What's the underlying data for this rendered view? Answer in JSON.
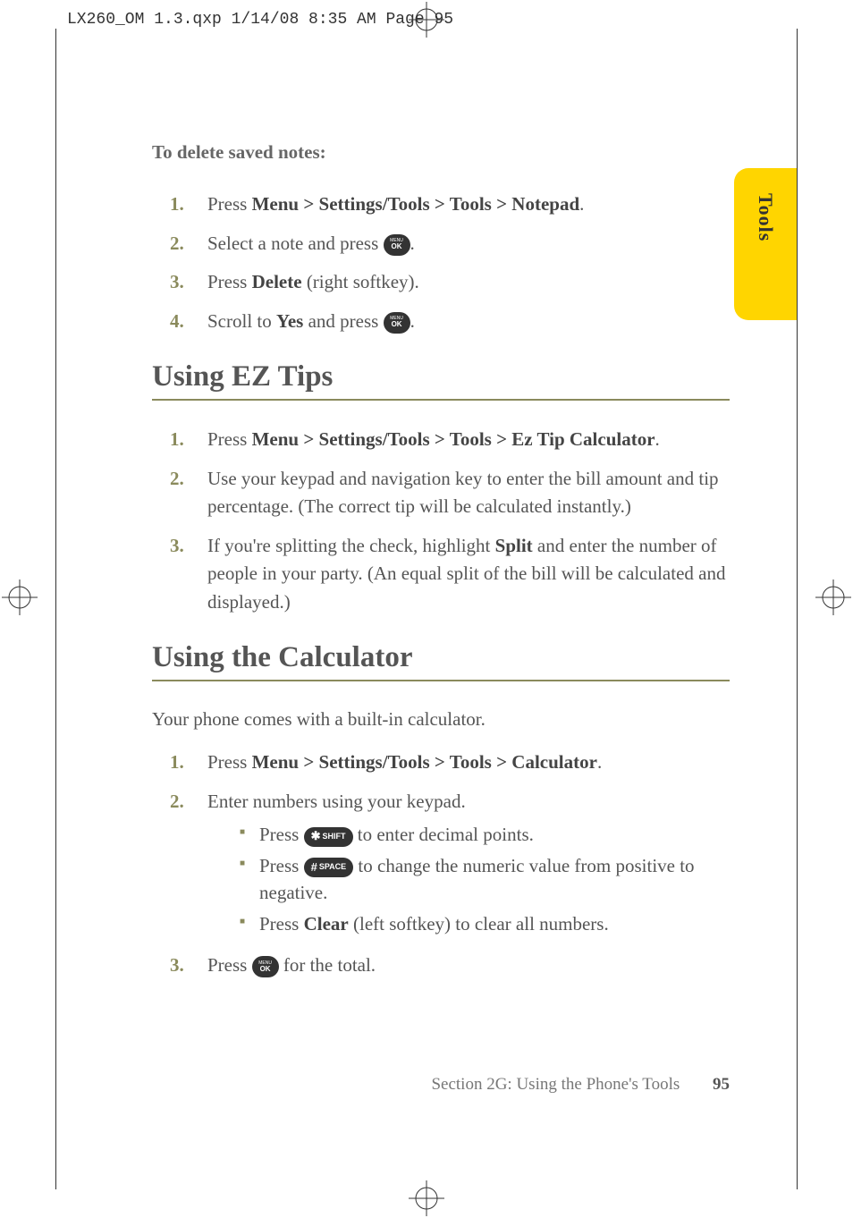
{
  "prepress_header": "LX260_OM 1.3.qxp  1/14/08  8:35 AM  Page 95",
  "sidebar_tab": "Tools",
  "colors": {
    "tab_bg": "#ffd500",
    "accent": "#8a8a5c",
    "body_text": "#555555",
    "num_color": "#8a8a5c"
  },
  "section_a": {
    "subtitle": "To delete saved notes:",
    "steps": [
      {
        "num": "1.",
        "html": "Press <b>Menu > Settings/Tools > Tools > Notepad</b>."
      },
      {
        "num": "2.",
        "pre": "Select a note and press ",
        "icon": "ok",
        "post": "."
      },
      {
        "num": "3.",
        "html": "Press <b>Delete</b> (right softkey)."
      },
      {
        "num": "4.",
        "pre": "Scroll to <b>Yes</b> and press ",
        "icon": "ok",
        "post": "."
      }
    ]
  },
  "section_b": {
    "heading": "Using EZ Tips",
    "steps": [
      {
        "num": "1.",
        "html": "Press <b>Menu > Settings/Tools > Tools > Ez Tip Calculator</b>."
      },
      {
        "num": "2.",
        "html": "Use your keypad and navigation key to enter the bill amount and tip percentage. (The correct tip will be calculated instantly.)"
      },
      {
        "num": "3.",
        "html": "If you're splitting the check, highlight <b>Split</b> and enter the number of people in your party. (An equal split of the bill will be calculated and displayed.)"
      }
    ]
  },
  "section_c": {
    "heading": "Using the Calculator",
    "body": "Your phone comes with a built-in calculator.",
    "steps": [
      {
        "num": "1.",
        "html": "Press <b>Menu > Settings/Tools > Tools > Calculator</b>."
      },
      {
        "num": "2.",
        "html": "Enter numbers using your keypad.",
        "subs": [
          {
            "pre": "Press ",
            "key_sym": "✱",
            "key_label": "SHIFT",
            "post": " to enter decimal points."
          },
          {
            "pre": "Press ",
            "key_sym": "#",
            "key_label": "SPACE",
            "post": " to change the numeric value from positive to negative."
          },
          {
            "html": "Press <b>Clear</b> (left softkey) to clear all numbers."
          }
        ]
      },
      {
        "num": "3.",
        "pre": "Press ",
        "icon": "ok",
        "post": " for the total."
      }
    ]
  },
  "footer": {
    "section": "Section 2G: Using the Phone's Tools",
    "page": "95"
  }
}
